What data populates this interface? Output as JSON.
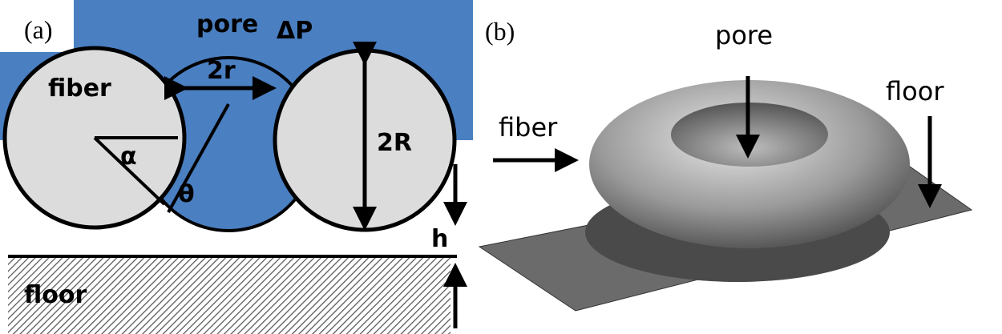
{
  "panel_a": {
    "label": "(a)",
    "pore": "pore",
    "pressure": "ΔP",
    "pore_width": "2r",
    "fiber": "fiber",
    "fiber_diameter": "2R",
    "angle_alpha": "α",
    "angle_theta": "θ",
    "gap": "h",
    "floor": "floor"
  },
  "panel_b": {
    "label": "(b)",
    "pore": "pore",
    "fiber": "fiber",
    "floor": "floor"
  }
}
